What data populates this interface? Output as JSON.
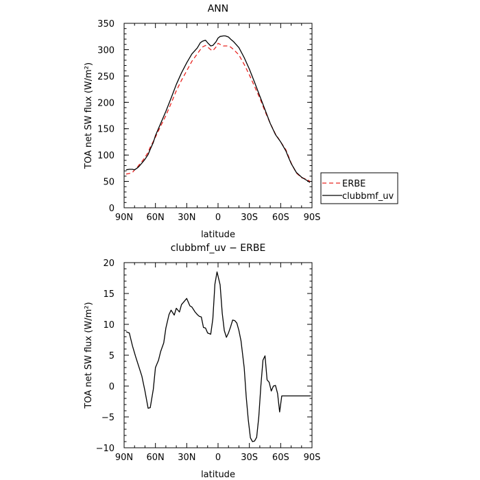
{
  "chart_data": [
    {
      "type": "line",
      "title": "ANN",
      "xlabel": "latitude",
      "ylabel": "TOA net SW flux (W/m²)",
      "xlim": [
        -90,
        90
      ],
      "ylim": [
        0,
        350
      ],
      "xticks": [
        -90,
        -60,
        -30,
        0,
        30,
        60,
        90
      ],
      "xticklabels": [
        "90N",
        "60N",
        "30N",
        "0",
        "30S",
        "60S",
        "90S"
      ],
      "yticks": [
        0,
        50,
        100,
        150,
        200,
        250,
        300,
        350
      ],
      "yticklabels": [
        "0",
        "50",
        "100",
        "150",
        "200",
        "250",
        "300",
        "350"
      ],
      "legend_placement": "right",
      "series": [
        {
          "name": "ERBE",
          "color": "#e8231f",
          "dash": "dashed",
          "x": [
            -88,
            -85,
            -82,
            -80,
            -77,
            -75,
            -72,
            -70,
            -67,
            -65,
            -62,
            -60,
            -55,
            -50,
            -45,
            -40,
            -35,
            -30,
            -25,
            -20,
            -17,
            -15,
            -12,
            -10,
            -7,
            -5,
            -2,
            0,
            2,
            5,
            7,
            10,
            12,
            15,
            20,
            25,
            30,
            35,
            40,
            45,
            50,
            55,
            60,
            65,
            67,
            70,
            75,
            80,
            85,
            88
          ],
          "y": [
            64,
            65,
            67,
            72,
            78,
            83,
            90,
            96,
            105,
            115,
            126,
            134,
            155,
            175,
            198,
            222,
            242,
            260,
            278,
            292,
            300,
            305,
            308,
            305,
            300,
            298,
            305,
            312,
            310,
            307,
            307,
            307,
            305,
            300,
            290,
            272,
            252,
            230,
            208,
            183,
            160,
            140,
            125,
            110,
            100,
            85,
            66,
            57,
            54,
            50
          ]
        },
        {
          "name": "clubbmf_uv",
          "color": "#000000",
          "dash": "solid",
          "x": [
            -88,
            -85,
            -82,
            -80,
            -77,
            -75,
            -72,
            -70,
            -67,
            -65,
            -62,
            -60,
            -55,
            -50,
            -45,
            -40,
            -35,
            -30,
            -25,
            -20,
            -17,
            -15,
            -12,
            -10,
            -7,
            -5,
            -2,
            0,
            2,
            5,
            7,
            10,
            12,
            15,
            20,
            25,
            30,
            35,
            40,
            45,
            50,
            55,
            60,
            65,
            67,
            70,
            75,
            80,
            85,
            88
          ],
          "y": [
            72,
            73,
            73,
            72,
            76,
            80,
            87,
            92,
            101,
            111,
            124,
            137,
            160,
            183,
            208,
            234,
            256,
            275,
            292,
            303,
            313,
            316,
            318,
            313,
            307,
            308,
            315,
            322,
            325,
            326,
            326,
            324,
            320,
            315,
            304,
            285,
            263,
            238,
            212,
            186,
            160,
            139,
            125,
            108,
            98,
            84,
            67,
            58,
            52,
            48
          ]
        }
      ]
    },
    {
      "type": "line",
      "title": "clubbmf_uv − ERBE",
      "xlabel": "latitude",
      "ylabel": "TOA net SW flux (W/m²)",
      "xlim": [
        -90,
        90
      ],
      "ylim": [
        -10,
        20
      ],
      "xticks": [
        -90,
        -60,
        -30,
        0,
        30,
        60,
        90
      ],
      "xticklabels": [
        "90N",
        "60N",
        "30N",
        "0",
        "30S",
        "60S",
        "90S"
      ],
      "yticks": [
        -10,
        -5,
        0,
        5,
        10,
        15,
        20
      ],
      "yticklabels": [
        "−10",
        "−5",
        "0",
        "5",
        "10",
        "15",
        "20"
      ],
      "series": [
        {
          "color": "#000000",
          "dash": "solid",
          "x": [
            -88,
            -85,
            -82,
            -79,
            -76,
            -73,
            -70,
            -67,
            -65,
            -62,
            -60,
            -57,
            -55,
            -52,
            -50,
            -47,
            -45,
            -42,
            -40,
            -37,
            -35,
            -32,
            -30,
            -27,
            -25,
            -22,
            -20,
            -18,
            -16,
            -14,
            -12,
            -10,
            -7,
            -5,
            -3,
            -1,
            0,
            2,
            4,
            6,
            8,
            10,
            12,
            14,
            16,
            18,
            20,
            22,
            25,
            27,
            29,
            31,
            33,
            35,
            37,
            39,
            41,
            43,
            45,
            47,
            49,
            51,
            53,
            55,
            57,
            59,
            61,
            63,
            65,
            67,
            69,
            71,
            73,
            75,
            77,
            79,
            81,
            83,
            85,
            87,
            89
          ],
          "y": [
            8.8,
            8.6,
            6.5,
            4.8,
            3.2,
            1.6,
            -0.8,
            -3.6,
            -3.5,
            -0.5,
            3.0,
            4.2,
            5.6,
            7.0,
            9.4,
            11.6,
            12.3,
            11.5,
            12.6,
            12.0,
            13.2,
            13.8,
            14.2,
            13.0,
            12.8,
            12.0,
            11.6,
            11.3,
            11.2,
            9.5,
            9.4,
            8.6,
            8.4,
            10.9,
            16.5,
            18.5,
            17.8,
            16.4,
            11.8,
            9.0,
            7.9,
            8.6,
            9.6,
            10.7,
            10.6,
            10.2,
            9.0,
            7.3,
            3.0,
            -1.8,
            -5.5,
            -8.4,
            -9.0,
            -8.9,
            -8.3,
            -5.0,
            0.0,
            4.2,
            4.9,
            1.0,
            0.6,
            -0.8,
            0.0,
            0.1,
            -1.2,
            -4.2,
            -1.6,
            -1.6,
            -1.6,
            -1.6,
            -1.6,
            -1.6,
            -1.6,
            -1.6,
            -1.6,
            -1.6,
            -1.6,
            -1.6,
            -1.6,
            -1.6,
            -1.6
          ]
        }
      ]
    }
  ],
  "legend": {
    "erbe_label": "ERBE",
    "model_label": "clubbmf_uv"
  }
}
